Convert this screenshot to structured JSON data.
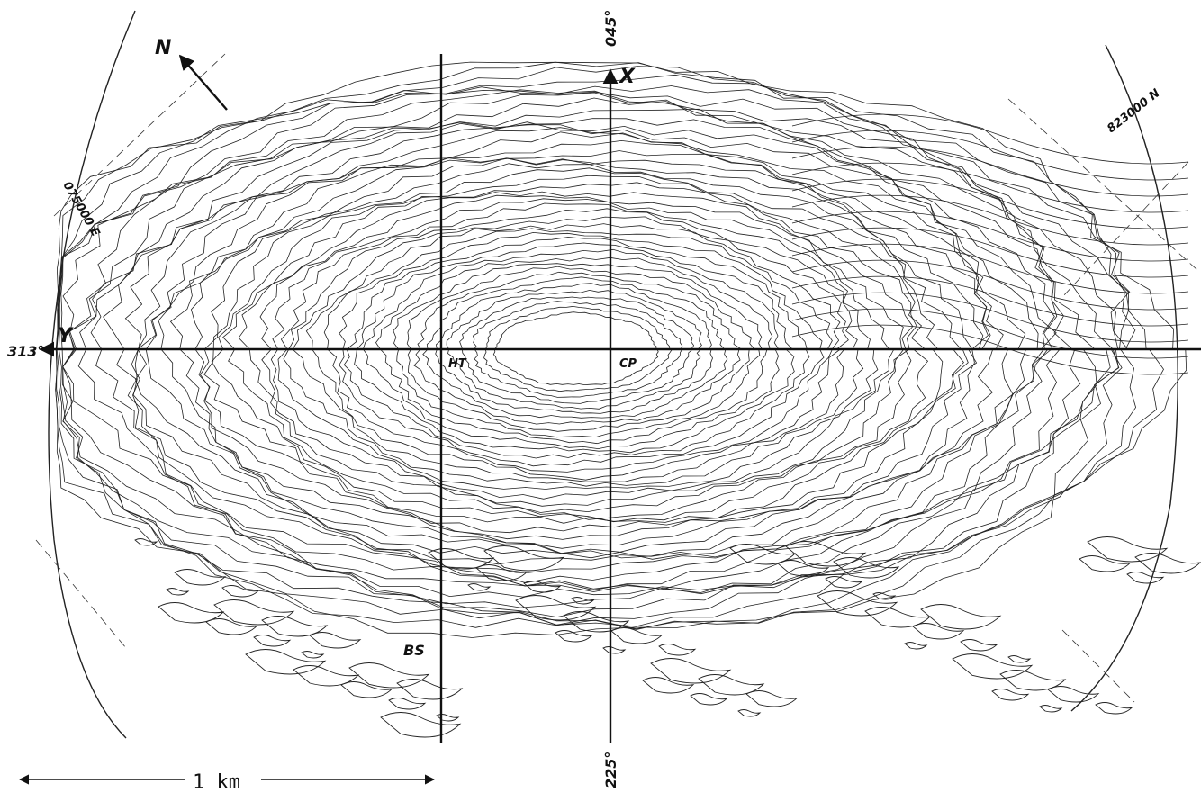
{
  "map": {
    "north_label": "N",
    "axis_x_label": "X",
    "axis_y_label": "Y",
    "bearing_top": "045°",
    "bearing_bottom": "225°",
    "bearing_left": "313°",
    "grid_east_label": "075000 E",
    "grid_north_label": "823000 N",
    "point_ht": "HT",
    "point_cp": "CP",
    "point_bs": "BS",
    "scale_label": "1 km",
    "colors": {
      "ink": "#111111",
      "paper": "#ffffff"
    }
  }
}
